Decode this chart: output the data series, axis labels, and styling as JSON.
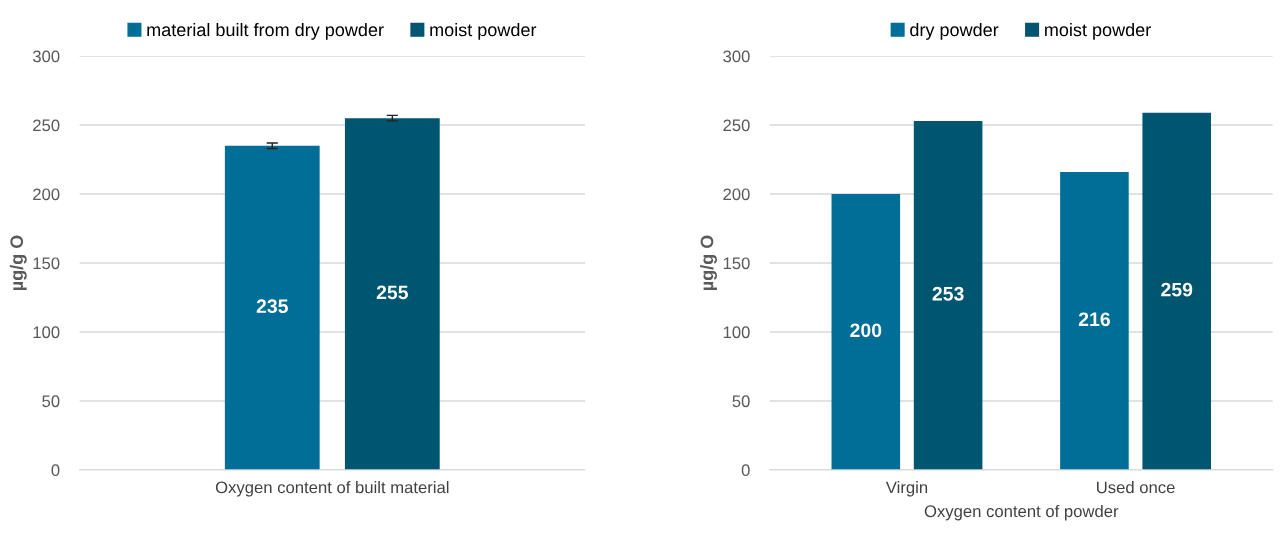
{
  "chart_data": [
    {
      "type": "bar",
      "categories": [
        "Oxygen content of built material"
      ],
      "ylabel": "µg/g O",
      "ylim": [
        0,
        300
      ],
      "yticks": [
        0,
        50,
        100,
        150,
        200,
        250,
        300
      ],
      "grid": "y",
      "legend": "top",
      "data_labels": true,
      "series": [
        {
          "name": "material built from dry powder",
          "color": "#006e96",
          "values": [
            235
          ],
          "errors": [
            2
          ]
        },
        {
          "name": "moist powder",
          "color": "#005570",
          "values": [
            255
          ],
          "errors": [
            2
          ]
        }
      ]
    },
    {
      "type": "bar",
      "categories": [
        "Virgin",
        "Used once"
      ],
      "xlabel": "Oxygen content of powder",
      "ylabel": "µg/g O",
      "ylim": [
        0,
        300
      ],
      "yticks": [
        0,
        50,
        100,
        150,
        200,
        250,
        300
      ],
      "grid": "y",
      "legend": "top",
      "data_labels": true,
      "series": [
        {
          "name": "dry powder",
          "color": "#006e96",
          "values": [
            200,
            216
          ]
        },
        {
          "name": "moist powder",
          "color": "#005570",
          "values": [
            253,
            259
          ]
        }
      ]
    }
  ]
}
